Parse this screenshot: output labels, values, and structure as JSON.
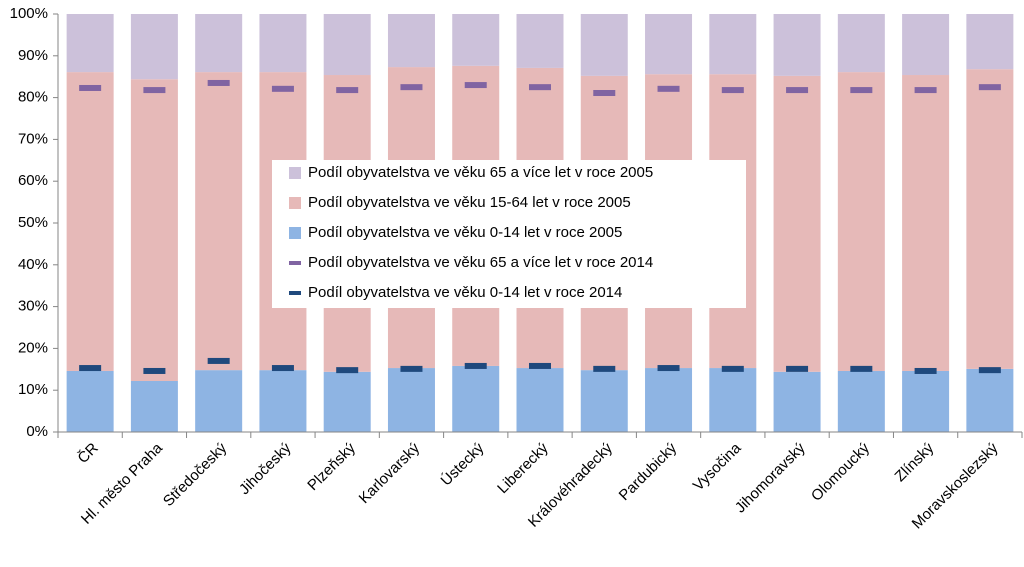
{
  "chart_data": {
    "type": "bar",
    "categories": [
      "ČR",
      "Hl. město Praha",
      "Středočeský",
      "Jihočeský",
      "Plzeňský",
      "Karlovarský",
      "Ústecký",
      "Liberecký",
      "Královéhradecký",
      "Pardubický",
      "Vysočina",
      "Jihomoravský",
      "Olomoucký",
      "Zlínský",
      "Moravskoslezský"
    ],
    "series": [
      {
        "name": "Podíl obyvatelstva ve věku 65 a více let v roce 2005",
        "kind": "bar",
        "color": "#ccc1da",
        "values": [
          13.9,
          15.6,
          13.9,
          13.9,
          14.6,
          12.7,
          12.4,
          12.9,
          14.8,
          14.4,
          14.4,
          14.8,
          13.9,
          14.6,
          13.2
        ]
      },
      {
        "name": "Podíl obyvatelstva ve věku 15-64 let v roce 2005",
        "kind": "bar",
        "color": "#e6b9b8",
        "values": [
          71.5,
          72.2,
          71.3,
          71.3,
          71.0,
          72.0,
          71.8,
          71.8,
          70.4,
          70.3,
          70.3,
          70.8,
          71.5,
          70.8,
          71.7
        ]
      },
      {
        "name": "Podíl obyvatelstva ve věku 0-14 let v roce 2005",
        "kind": "bar",
        "color": "#8eb4e3",
        "values": [
          14.6,
          12.2,
          14.8,
          14.8,
          14.4,
          15.3,
          15.8,
          15.3,
          14.8,
          15.3,
          15.3,
          14.4,
          14.6,
          14.6,
          15.1
        ]
      },
      {
        "name": "Podíl obyvatelstva ve věku 65 a více let v roce 2014",
        "kind": "marker",
        "color": "#8064a2",
        "values": [
          82.3,
          81.8,
          83.5,
          82.1,
          81.8,
          82.5,
          83.0,
          82.5,
          81.1,
          82.1,
          81.8,
          81.8,
          81.8,
          81.8,
          82.5
        ]
      },
      {
        "name": "Podíl obyvatelstva ve věku 0-14 let v roce 2014",
        "kind": "marker",
        "color": "#1f497d",
        "values": [
          15.3,
          14.6,
          17.0,
          15.3,
          14.8,
          15.1,
          15.8,
          15.8,
          15.1,
          15.3,
          15.1,
          15.1,
          15.1,
          14.6,
          14.8
        ]
      }
    ],
    "ylim": [
      0,
      100
    ],
    "yticks": [
      {
        "value": 0,
        "label": "0%"
      },
      {
        "value": 10,
        "label": "10%"
      },
      {
        "value": 20,
        "label": "20%"
      },
      {
        "value": 30,
        "label": "30%"
      },
      {
        "value": 40,
        "label": "40%"
      },
      {
        "value": 50,
        "label": "50%"
      },
      {
        "value": 60,
        "label": "60%"
      },
      {
        "value": 70,
        "label": "70%"
      },
      {
        "value": 80,
        "label": "80%"
      },
      {
        "value": 90,
        "label": "90%"
      },
      {
        "value": 100,
        "label": "100%"
      }
    ],
    "grid": false
  }
}
